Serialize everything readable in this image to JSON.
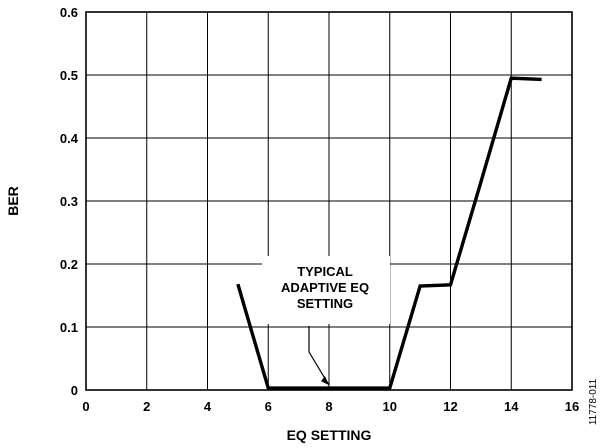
{
  "chart_data": {
    "type": "line",
    "xlabel": "EQ SETTING",
    "ylabel": "BER",
    "xlim": [
      0,
      16
    ],
    "ylim": [
      0,
      0.6
    ],
    "x_ticks": [
      "0",
      "2",
      "4",
      "6",
      "8",
      "10",
      "12",
      "14",
      "16"
    ],
    "y_ticks": [
      "0",
      "0.1",
      "0.2",
      "0.3",
      "0.4",
      "0.5",
      "0.6"
    ],
    "grid": true,
    "series": [
      {
        "x": [
          5,
          6,
          7,
          8,
          9,
          10,
          11,
          12,
          13,
          14,
          15
        ],
        "y": [
          0.168,
          0.003,
          0.003,
          0.003,
          0.003,
          0.003,
          0.165,
          0.167,
          0.33,
          0.495,
          0.493
        ]
      }
    ],
    "annotation": {
      "lines": [
        "TYPICAL",
        "ADAPTIVE EQ",
        "SETTING"
      ],
      "points_to": [
        8,
        0.003
      ]
    },
    "figure_id": "11778-011"
  }
}
